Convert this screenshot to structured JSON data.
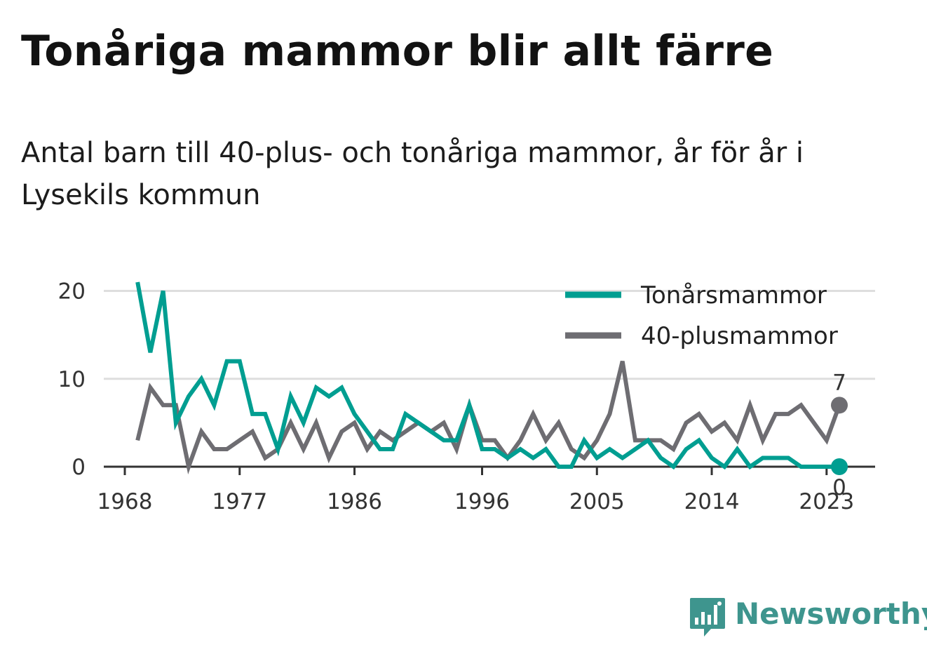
{
  "header": {
    "title": "Tonåriga mammor blir allt färre",
    "subtitle": "Antal barn till 40-plus- och tonåriga mammor, år för år i Lysekils kommun"
  },
  "brand": {
    "name": "Newsworthy",
    "icon": "bar-chart-speech-bubble-icon",
    "color": "#3e958e"
  },
  "chart_data": {
    "type": "line",
    "title": "Tonåriga mammor blir allt färre",
    "subtitle": "Antal barn till 40-plus- och tonåriga mammor, år för år i Lysekils kommun",
    "xlabel": "",
    "ylabel": "",
    "x": [
      1969,
      1970,
      1971,
      1972,
      1973,
      1974,
      1975,
      1976,
      1977,
      1978,
      1979,
      1980,
      1981,
      1982,
      1983,
      1984,
      1985,
      1986,
      1987,
      1988,
      1989,
      1990,
      1991,
      1992,
      1993,
      1994,
      1995,
      1996,
      1997,
      1998,
      1999,
      2000,
      2001,
      2002,
      2003,
      2004,
      2005,
      2006,
      2007,
      2008,
      2009,
      2010,
      2011,
      2012,
      2013,
      2014,
      2015,
      2016,
      2017,
      2018,
      2019,
      2020,
      2021,
      2022,
      2023,
      2024
    ],
    "xlim": [
      1968,
      2028.5
    ],
    "x_ticks": [
      "1968",
      "1977",
      "1986",
      "1996",
      "2005",
      "2014",
      "2023"
    ],
    "ylim": [
      0,
      21
    ],
    "y_ticks": [
      "0",
      "10",
      "20"
    ],
    "grid": "horizontal",
    "legend_position": "top-right",
    "series": [
      {
        "name": "Tonårsmammor",
        "color": "#009e91",
        "values": [
          21,
          13,
          20,
          5,
          8,
          10,
          7,
          12,
          12,
          6,
          6,
          2,
          8,
          5,
          9,
          8,
          9,
          6,
          4,
          2,
          2,
          6,
          5,
          4,
          3,
          3,
          7,
          2,
          2,
          1,
          2,
          1,
          2,
          0,
          0,
          3,
          1,
          2,
          1,
          2,
          3,
          1,
          0,
          2,
          3,
          1,
          0,
          2,
          0,
          1,
          1,
          1,
          0,
          0,
          0,
          0
        ],
        "end_label": "0"
      },
      {
        "name": "40-plusmammor",
        "color": "#6e6d72",
        "values": [
          3,
          9,
          7,
          7,
          0,
          4,
          2,
          2,
          3,
          4,
          1,
          2,
          5,
          2,
          5,
          1,
          4,
          5,
          2,
          4,
          3,
          4,
          5,
          4,
          5,
          2,
          7,
          3,
          3,
          1,
          3,
          6,
          3,
          5,
          2,
          1,
          3,
          6,
          12,
          3,
          3,
          3,
          2,
          5,
          6,
          4,
          5,
          3,
          7,
          3,
          6,
          6,
          7,
          5,
          3,
          7
        ],
        "end_label": "7"
      }
    ]
  }
}
